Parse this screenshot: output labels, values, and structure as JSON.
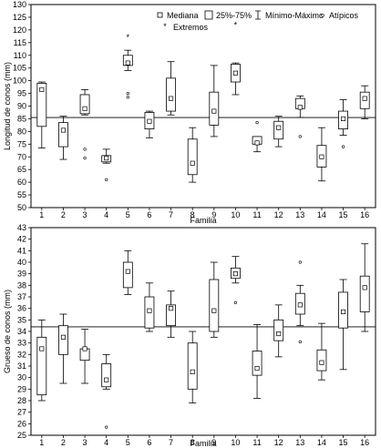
{
  "chart_data": [
    {
      "type": "box",
      "xlabel": "Familia",
      "ylabel": "Longitud de conos (mm)",
      "ylim": [
        50,
        130
      ],
      "yticks": [
        50,
        55,
        60,
        65,
        70,
        75,
        80,
        85,
        90,
        95,
        100,
        105,
        110,
        115,
        120,
        125,
        130
      ],
      "categories": [
        "1",
        "2",
        "3",
        "4",
        "5",
        "6",
        "7",
        "8",
        "9",
        "10",
        "11",
        "12",
        "13",
        "14",
        "15",
        "16"
      ],
      "reference_line": 85.5,
      "legend": [
        "Mediana",
        "25%-75%",
        "Mínimo-Máximo",
        "Atípicos",
        "Extremos"
      ],
      "legend_position": "top-right",
      "boxes": [
        {
          "min": 73.5,
          "q1": 82,
          "median": 96.5,
          "q3": 99,
          "max": 99.5,
          "outliers": [],
          "extremes": []
        },
        {
          "min": 69,
          "q1": 74,
          "median": 80.5,
          "q3": 83.5,
          "max": 86,
          "outliers": [],
          "extremes": []
        },
        {
          "min": 86.5,
          "q1": 87,
          "median": 89,
          "q3": 94.5,
          "max": 96.5,
          "outliers": [
            73,
            69.5
          ],
          "extremes": []
        },
        {
          "min": 67.5,
          "q1": 68,
          "median": 69.5,
          "q3": 70.5,
          "max": 73,
          "outliers": [
            61
          ],
          "extremes": []
        },
        {
          "min": 104,
          "q1": 106,
          "median": 107,
          "q3": 110,
          "max": 112,
          "outliers": [
            95,
            93.5
          ],
          "extremes": [
            117
          ]
        },
        {
          "min": 77.5,
          "q1": 81,
          "median": 84,
          "q3": 87.5,
          "max": 88,
          "outliers": [],
          "extremes": []
        },
        {
          "min": 86.5,
          "q1": 88,
          "median": 93,
          "q3": 101,
          "max": 107.5,
          "outliers": [],
          "extremes": []
        },
        {
          "min": 60,
          "q1": 63,
          "median": 67.5,
          "q3": 77,
          "max": 81.5,
          "outliers": [],
          "extremes": []
        },
        {
          "min": 78,
          "q1": 82.5,
          "median": 88,
          "q3": 95.5,
          "max": 106,
          "outliers": [],
          "extremes": []
        },
        {
          "min": 94.5,
          "q1": 99.5,
          "median": 103,
          "q3": 106.5,
          "max": 107,
          "outliers": [],
          "extremes": [
            122
          ]
        },
        {
          "min": 72,
          "q1": 75,
          "median": 75.5,
          "q3": 78,
          "max": 78,
          "outliers": [
            83.5
          ],
          "extremes": []
        },
        {
          "min": 74,
          "q1": 77,
          "median": 81.5,
          "q3": 84,
          "max": 86,
          "outliers": [],
          "extremes": []
        },
        {
          "min": 85.5,
          "q1": 89,
          "median": 89.5,
          "q3": 93,
          "max": 94,
          "outliers": [
            78
          ],
          "extremes": []
        },
        {
          "min": 60.5,
          "q1": 66,
          "median": 70,
          "q3": 74.5,
          "max": 81.5,
          "outliers": [],
          "extremes": []
        },
        {
          "min": 78.5,
          "q1": 81,
          "median": 85,
          "q3": 88,
          "max": 92.5,
          "outliers": [
            74
          ],
          "extremes": []
        },
        {
          "min": 85,
          "q1": 89,
          "median": 93,
          "q3": 95.5,
          "max": 98,
          "outliers": [],
          "extremes": []
        }
      ]
    },
    {
      "type": "box",
      "xlabel": "Familia",
      "ylabel": "Grueso de conos (mm)",
      "ylim": [
        25,
        43
      ],
      "yticks": [
        25,
        26,
        27,
        28,
        29,
        30,
        31,
        32,
        33,
        34,
        35,
        36,
        37,
        38,
        39,
        40,
        41,
        42,
        43
      ],
      "categories": [
        "1",
        "2",
        "3",
        "4",
        "5",
        "6",
        "7",
        "8",
        "9",
        "10",
        "11",
        "12",
        "13",
        "14",
        "15",
        "16"
      ],
      "reference_line": 34.4,
      "boxes": [
        {
          "min": 28,
          "q1": 28.5,
          "median": 32.5,
          "q3": 33.5,
          "max": 35,
          "outliers": [],
          "extremes": []
        },
        {
          "min": 29.5,
          "q1": 32,
          "median": 33.5,
          "q3": 34.5,
          "max": 35.5,
          "outliers": [],
          "extremes": []
        },
        {
          "min": 29.5,
          "q1": 31.5,
          "median": 32.5,
          "q3": 32.5,
          "max": 34.2,
          "outliers": [],
          "extremes": []
        },
        {
          "min": 29,
          "q1": 29.2,
          "median": 29.8,
          "q3": 31.2,
          "max": 32,
          "outliers": [
            25.7
          ],
          "extremes": []
        },
        {
          "min": 37.2,
          "q1": 37.8,
          "median": 39.2,
          "q3": 40,
          "max": 41,
          "outliers": [],
          "extremes": []
        },
        {
          "min": 34,
          "q1": 34.3,
          "median": 35.8,
          "q3": 37,
          "max": 38.2,
          "outliers": [],
          "extremes": []
        },
        {
          "min": 33.5,
          "q1": 34.5,
          "median": 36,
          "q3": 36.3,
          "max": 37.5,
          "outliers": [],
          "extremes": []
        },
        {
          "min": 27.8,
          "q1": 29,
          "median": 30.5,
          "q3": 33,
          "max": 34,
          "outliers": [],
          "extremes": []
        },
        {
          "min": 33.5,
          "q1": 34,
          "median": 35.8,
          "q3": 38.5,
          "max": 40,
          "outliers": [],
          "extremes": []
        },
        {
          "min": 38.2,
          "q1": 38.6,
          "median": 39,
          "q3": 39.5,
          "max": 40.5,
          "outliers": [
            36.5
          ],
          "extremes": []
        },
        {
          "min": 28.2,
          "q1": 30.2,
          "median": 30.8,
          "q3": 32.3,
          "max": 34.6,
          "outliers": [],
          "extremes": []
        },
        {
          "min": 31.8,
          "q1": 33.2,
          "median": 33.8,
          "q3": 35,
          "max": 36.3,
          "outliers": [],
          "extremes": []
        },
        {
          "min": 34.5,
          "q1": 35.5,
          "median": 36.3,
          "q3": 37.3,
          "max": 38,
          "outliers": [
            40,
            33.1
          ],
          "extremes": []
        },
        {
          "min": 29.8,
          "q1": 30.6,
          "median": 31.3,
          "q3": 32.4,
          "max": 34.7,
          "outliers": [],
          "extremes": []
        },
        {
          "min": 30.7,
          "q1": 34.3,
          "median": 35.7,
          "q3": 37.4,
          "max": 38.5,
          "outliers": [],
          "extremes": []
        },
        {
          "min": 34,
          "q1": 35.7,
          "median": 37.8,
          "q3": 38.8,
          "max": 41.6,
          "outliers": [],
          "extremes": []
        }
      ]
    }
  ]
}
